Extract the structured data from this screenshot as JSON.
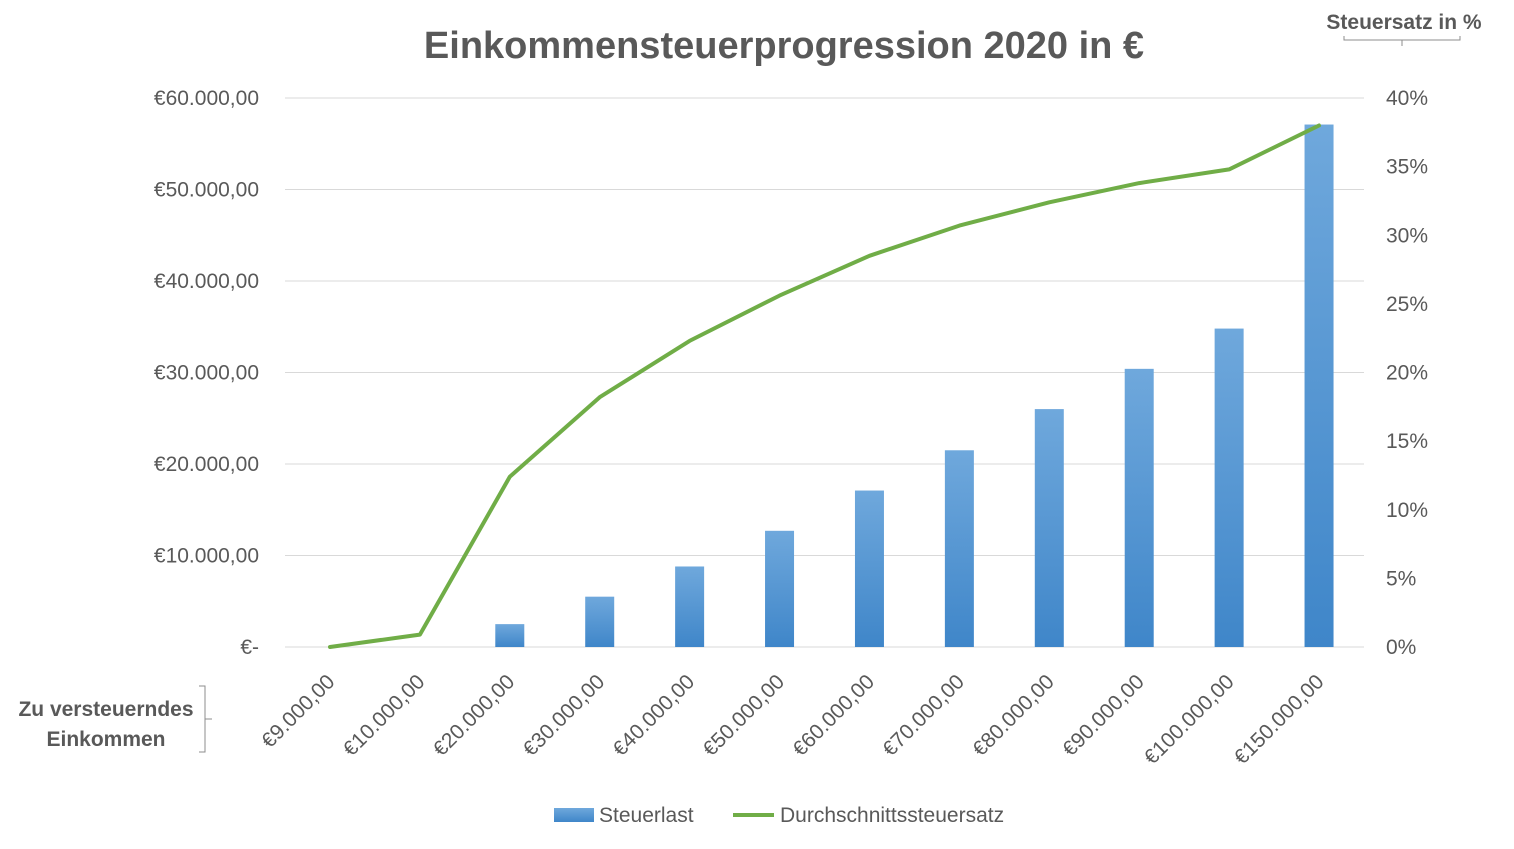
{
  "chart_data": {
    "type": "bar+line",
    "title": "Einkommensteuerprogression 2020 in €",
    "xlabel": [
      "Zu versteuerndes",
      "Einkommen"
    ],
    "ylabel_right": "Steuersatz in %",
    "categories": [
      "€9.000,00",
      "€10.000,00",
      "€20.000,00",
      "€30.000,00",
      "€40.000,00",
      "€50.000,00",
      "€60.000,00",
      "€70.000,00",
      "€80.000,00",
      "€90.000,00",
      "€100.000,00",
      "€150.000,00"
    ],
    "series": [
      {
        "name": "Steuerlast",
        "type": "bar",
        "axis": "left",
        "color": "#5b9bd5",
        "values": [
          0,
          50,
          2500,
          5500,
          8800,
          12700,
          17100,
          21500,
          26000,
          30400,
          34800,
          57100
        ]
      },
      {
        "name": "Durchschnittssteuersatz",
        "type": "line",
        "axis": "right",
        "color": "#70ad47",
        "values": [
          0,
          0.9,
          12.4,
          18.2,
          22.3,
          25.6,
          28.5,
          30.7,
          32.4,
          33.8,
          34.8,
          38.0
        ]
      }
    ],
    "y_left": {
      "min": 0,
      "max": 60000,
      "ticks": [
        0,
        10000,
        20000,
        30000,
        40000,
        50000,
        60000
      ],
      "tick_labels": [
        "€-",
        "€10.000,00",
        "€20.000,00",
        "€30.000,00",
        "€40.000,00",
        "€50.000,00",
        "€60.000,00"
      ]
    },
    "y_right": {
      "min": 0,
      "max": 40,
      "ticks": [
        0,
        5,
        10,
        15,
        20,
        25,
        30,
        35,
        40
      ],
      "tick_labels": [
        "0%",
        "5%",
        "10%",
        "15%",
        "20%",
        "25%",
        "30%",
        "35%",
        "40%"
      ]
    },
    "grid": true,
    "legend_position": "bottom"
  }
}
